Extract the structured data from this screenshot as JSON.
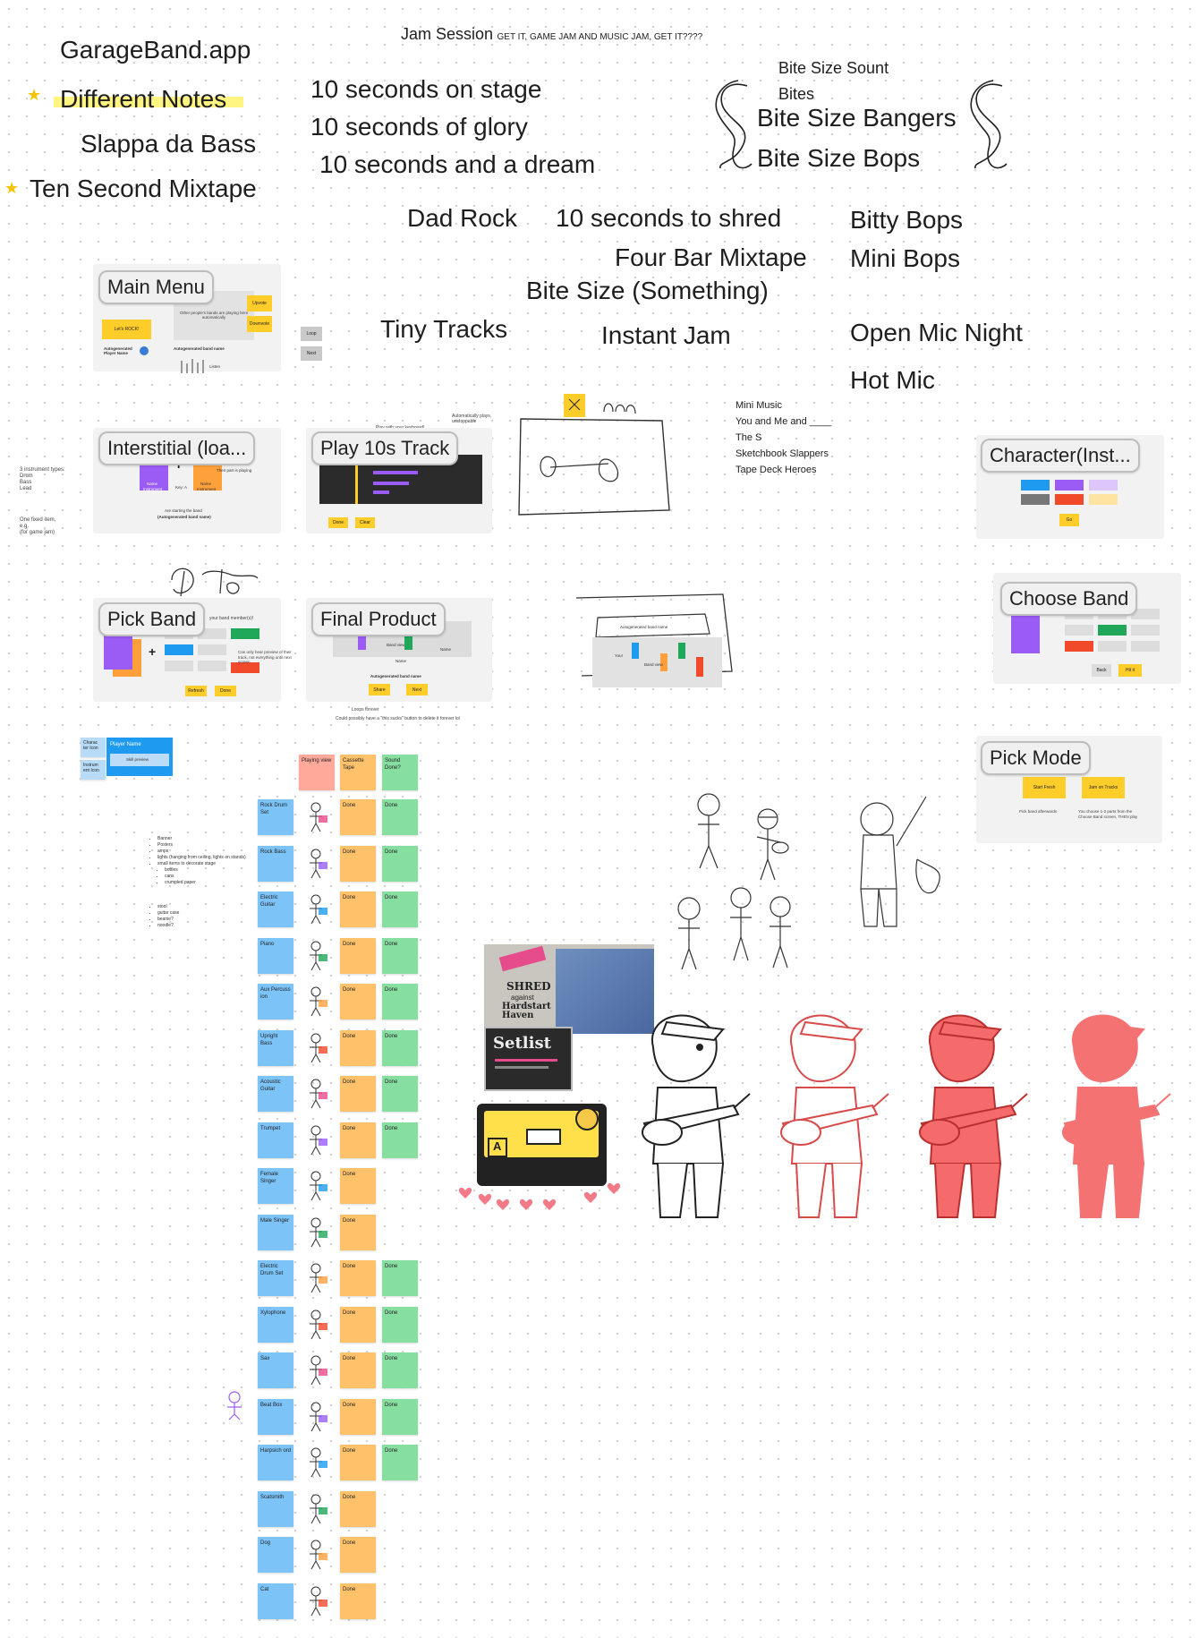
{
  "header": {
    "title": "Jam Session",
    "subtitle": "GET IT, GAME JAM AND MUSIC JAM, GET IT????"
  },
  "names": {
    "garageband": "GarageBand.app",
    "different_notes": "Different Notes",
    "slappa": "Slappa da Bass",
    "mixtape": "Ten Second Mixtape",
    "stage": "10 seconds on stage",
    "glory": "10 seconds of glory",
    "dream": "10 seconds and a dream",
    "dad_rock": "Dad Rock",
    "shred": "10 seconds to shred",
    "four_bar": "Four Bar Mixtape",
    "bite_something": "Bite Size (Something)",
    "tiny_tracks": "Tiny Tracks",
    "instant_jam": "Instant Jam",
    "bite_sount": "Bite Size Sount",
    "bites": "Bites",
    "bangers": "Bite Size Bangers",
    "bops": "Bite Size Bops",
    "bitty_bops": "Bitty Bops",
    "mini_bops": "Mini Bops",
    "open_mic": "Open Mic Night",
    "hot_mic": "Hot Mic",
    "small_list": [
      "Mini Music",
      "You and Me and ____",
      "The S",
      "Sketchbook Slappers",
      "Tape Deck Heroes"
    ]
  },
  "screens": {
    "main_menu": {
      "label": "Main Menu",
      "lets_rock": "Let's ROCK!",
      "upvote": "Upvote",
      "downvote": "Downvote",
      "others_text": "Other people's bands are playing here automatically",
      "band_name": "Autogenerated band name",
      "player_name": "Autogenerated Player Name",
      "listen_hint": "Listen",
      "side_loop": "Loop",
      "side_next": "Next"
    },
    "interstitial": {
      "label": "Interstitial (loa...",
      "left_note": [
        "3 instrument types:",
        "Drum",
        "Bass",
        "Lead"
      ],
      "left_note2": [
        "One fixed item,",
        "e.g.",
        "(for game jam)"
      ],
      "part_text": "Their part is playing",
      "key": "Key: A",
      "name1": "Name",
      "inst1": "Instrument",
      "name2": "Name",
      "inst2": "Instrument",
      "starting": "Are starting the band",
      "band_name": "(Autogenerated band name)"
    },
    "play_track": {
      "label": "Play 10s Track",
      "top_text": "Play with your keyboard!",
      "auto_text": "Automatically plays, unstoppable",
      "done": "Done",
      "clear": "Clear"
    },
    "character": {
      "label": "Character(Inst...",
      "go": "Go"
    },
    "pick_band": {
      "label": "Pick Band",
      "members_text": "your band member(s)!",
      "preview_text": "Can only hear preview of their track, not everything until next screen",
      "refresh": "Refresh",
      "done": "Done"
    },
    "final_product": {
      "label": "Final Product",
      "you": "You!",
      "band_view": "Band view",
      "name": "Name",
      "band_name": "Autogenerated band name",
      "share": "Share",
      "next": "Next",
      "loops": "Loops forever",
      "suck": "Could possibly have a \"this sucks\" button to delete it forever lol"
    },
    "choose_band": {
      "label": "Choose Band",
      "back": "Back",
      "hit": "Hit it"
    },
    "pick_mode": {
      "label": "Pick Mode",
      "start_fresh": "Start Fresh",
      "jam_on": "Jam on Tracks",
      "note1": "Pick band afterwards",
      "note2": "You choose 1-2 parts from the Choose Band screen, THEN play"
    },
    "player_card": {
      "char_icon": "Charac ter Icon",
      "instr_icon": "Instrum ent Icon",
      "player_name": "Player Name",
      "skill": "Skill preview"
    }
  },
  "sketch_label": "Autogenerated band name",
  "sketch_you": "You!",
  "sketch_band": "Band view",
  "decor_notes": [
    "Banner",
    "Posters",
    "amps",
    "lights (hanging from ceiling, lights on stands)",
    "small items to decorate stage",
    "bottles",
    "cans",
    "crumpled paper"
  ],
  "decor_notes2": [
    "stool",
    "guitar case",
    "beanie?",
    "noodle?"
  ],
  "tracker": {
    "headers": [
      "Playing view",
      "Cassette Tape",
      "Sound Done?"
    ],
    "rows": [
      {
        "name": "Rock Drum Set",
        "art": "Done",
        "sound": "Done"
      },
      {
        "name": "Rock Bass",
        "art": "Done",
        "sound": "Done"
      },
      {
        "name": "Electric Guitar",
        "art": "Done",
        "sound": "Done"
      },
      {
        "name": "Piano",
        "art": "Done",
        "sound": "Done"
      },
      {
        "name": "Aux Percuss ion",
        "art": "Done",
        "sound": "Done"
      },
      {
        "name": "Upright Bass",
        "art": "Done",
        "sound": "Done"
      },
      {
        "name": "Acoustic Guitar",
        "art": "Done",
        "sound": "Done"
      },
      {
        "name": "Trumpet",
        "art": "Done",
        "sound": "Done"
      },
      {
        "name": "Female Singer",
        "art": "Done",
        "sound": ""
      },
      {
        "name": "Male Singer",
        "art": "Done",
        "sound": ""
      },
      {
        "name": "Electric Drum Set",
        "art": "Done",
        "sound": "Done"
      },
      {
        "name": "Xylophone",
        "art": "Done",
        "sound": "Done"
      },
      {
        "name": "Sax",
        "art": "Done",
        "sound": "Done"
      },
      {
        "name": "Beat Box",
        "art": "Done",
        "sound": "Done"
      },
      {
        "name": "Harpsich ord",
        "art": "Done",
        "sound": "Done"
      },
      {
        "name": "Scatsmith",
        "art": "Done",
        "sound": ""
      },
      {
        "name": "Dog",
        "art": "Done",
        "sound": ""
      },
      {
        "name": "Cat",
        "art": "Done",
        "sound": ""
      }
    ]
  },
  "posters": {
    "shred": "SHRED",
    "against": "against",
    "hardstart": "Hardstart Haven",
    "setlist": "Setlist",
    "tape_letter": "A"
  },
  "colors": {
    "accent_yellow": "#ffcd29",
    "sticky_blue": "#7cc4f8",
    "sticky_orange": "#ffc26b",
    "sticky_green": "#86dfa0",
    "character_red": "#f56b6b"
  }
}
